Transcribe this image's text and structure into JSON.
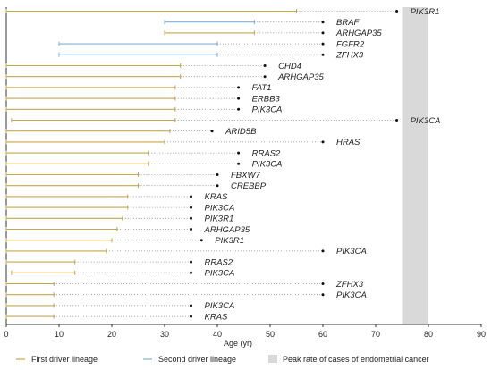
{
  "chart_data": {
    "type": "timeline",
    "xlabel": "Age (yr)",
    "xlim": [
      0,
      90
    ],
    "xticks": [
      0,
      10,
      20,
      30,
      40,
      50,
      60,
      70,
      80,
      90
    ],
    "peak_band": {
      "from": 75,
      "to": 80,
      "color": "#d9d9d9"
    },
    "colors": {
      "first": "#c8a84b",
      "second": "#7fb0d6",
      "dotted": "#888888"
    },
    "rows": [
      {
        "first": [
          0,
          55
        ],
        "second": null,
        "end": 74,
        "gene": "PIK3R1"
      },
      {
        "first": null,
        "second": [
          30,
          47
        ],
        "end": 60,
        "gene": "BRAF"
      },
      {
        "first": [
          30,
          47
        ],
        "second": null,
        "end": 60,
        "gene": "ARHGAP35"
      },
      {
        "first": null,
        "second": [
          10,
          40
        ],
        "end": 60,
        "gene": "FGFR2"
      },
      {
        "first": null,
        "second": [
          10,
          40
        ],
        "end": 60,
        "gene": "ZFHX3"
      },
      {
        "first": [
          0,
          33
        ],
        "second": null,
        "end": 49,
        "gene": "CHD4"
      },
      {
        "first": [
          0,
          33
        ],
        "second": null,
        "end": 49,
        "gene": "ARHGAP35"
      },
      {
        "first": [
          0,
          32
        ],
        "second": null,
        "end": 44,
        "gene": "FAT1"
      },
      {
        "first": [
          0,
          32
        ],
        "second": null,
        "end": 44,
        "gene": "ERBB3"
      },
      {
        "first": [
          0,
          32
        ],
        "second": null,
        "end": 44,
        "gene": "PIK3CA"
      },
      {
        "first": [
          1,
          32
        ],
        "second": null,
        "end": 74,
        "gene": "PIK3CA"
      },
      {
        "first": [
          0,
          31
        ],
        "second": null,
        "end": 39,
        "gene": "ARID5B"
      },
      {
        "first": [
          0,
          30
        ],
        "second": null,
        "end": 60,
        "gene": "HRAS"
      },
      {
        "first": [
          0,
          27
        ],
        "second": null,
        "end": 44,
        "gene": "RRAS2"
      },
      {
        "first": [
          0,
          27
        ],
        "second": null,
        "end": 44,
        "gene": "PIK3CA"
      },
      {
        "first": [
          0,
          25
        ],
        "second": null,
        "end": 40,
        "gene": "FBXW7"
      },
      {
        "first": [
          0,
          25
        ],
        "second": null,
        "end": 40,
        "gene": "CREBBP"
      },
      {
        "first": [
          0,
          23
        ],
        "second": null,
        "end": 35,
        "gene": "KRAS"
      },
      {
        "first": [
          0,
          23
        ],
        "second": null,
        "end": 35,
        "gene": "PIK3CA"
      },
      {
        "first": [
          0,
          22
        ],
        "second": null,
        "end": 35,
        "gene": "PIK3R1"
      },
      {
        "first": [
          0,
          21
        ],
        "second": null,
        "end": 35,
        "gene": "ARHGAP35"
      },
      {
        "first": [
          0,
          20
        ],
        "second": null,
        "end": 37,
        "gene": "PIK3R1"
      },
      {
        "first": [
          0,
          19
        ],
        "second": null,
        "end": 60,
        "gene": "PIK3CA"
      },
      {
        "first": [
          0,
          13
        ],
        "second": null,
        "end": 35,
        "gene": "RRAS2"
      },
      {
        "first": [
          1,
          13
        ],
        "second": null,
        "end": 35,
        "gene": "PIK3CA"
      },
      {
        "first": [
          0,
          9
        ],
        "second": null,
        "end": 60,
        "gene": "ZFHX3"
      },
      {
        "first": [
          0,
          9
        ],
        "second": null,
        "end": 60,
        "gene": "PIK3CA"
      },
      {
        "first": [
          0,
          9
        ],
        "second": null,
        "end": 35,
        "gene": "PIK3CA"
      },
      {
        "first": [
          0,
          9
        ],
        "second": null,
        "end": 35,
        "gene": "KRAS"
      }
    ],
    "legend": [
      {
        "type": "line",
        "color": "#c8a84b",
        "label": "First driver lineage"
      },
      {
        "type": "line",
        "color": "#7fb0d6",
        "label": "Second driver lineage"
      },
      {
        "type": "box",
        "color": "#d9d9d9",
        "label": "Peak rate of cases of endometrial cancer"
      }
    ]
  }
}
